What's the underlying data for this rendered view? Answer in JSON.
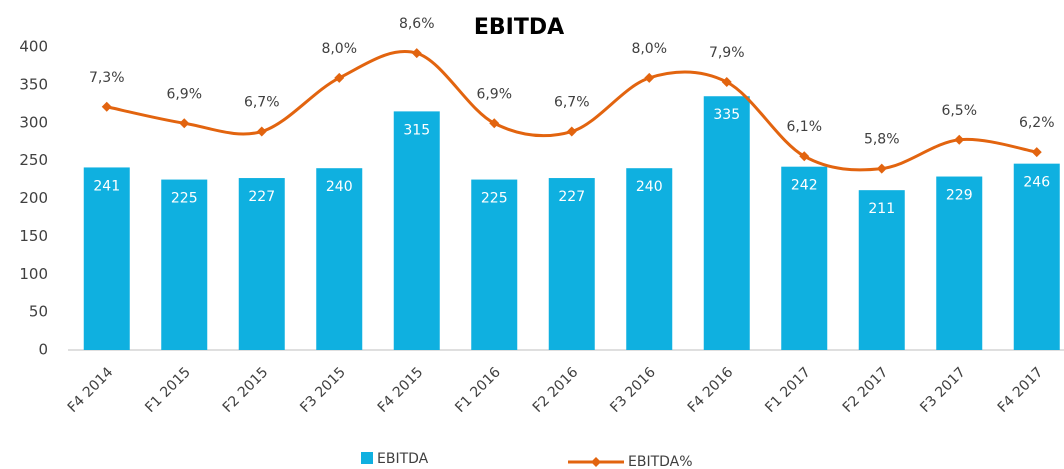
{
  "chart_data": {
    "type": "bar+line",
    "title": "EBITDA",
    "categories": [
      "F4 2014",
      "F1 2015",
      "F2 2015",
      "F3 2015",
      "F4 2015",
      "F1 2016",
      "F2 2016",
      "F3 2016",
      "F4 2016",
      "F1 2017",
      "F2 2017",
      "F3 2017",
      "F4 2017"
    ],
    "series": [
      {
        "name": "EBITDA",
        "type": "bar",
        "color": "#0fb0e0",
        "values": [
          241,
          225,
          227,
          240,
          315,
          225,
          227,
          240,
          335,
          242,
          211,
          229,
          246
        ]
      },
      {
        "name": "EBITDA%",
        "type": "line",
        "axis": "y2",
        "color": "#e2640f",
        "smooth": true,
        "values": [
          7.3,
          6.9,
          6.7,
          8.0,
          8.6,
          6.9,
          6.7,
          8.0,
          7.9,
          6.1,
          5.8,
          6.5,
          6.2
        ],
        "value_labels": [
          "7,3%",
          "6,9%",
          "6,7%",
          "8,0%",
          "8,6%",
          "6,9%",
          "6,7%",
          "8,0%",
          "7,9%",
          "6,1%",
          "5,8%",
          "6,5%",
          "6,2%"
        ]
      }
    ],
    "ylim": [
      0,
      400
    ],
    "yticks": [
      0,
      50,
      100,
      150,
      200,
      250,
      300,
      350,
      400
    ],
    "y2lim": [
      1.4,
      8.75
    ],
    "grid": false
  }
}
